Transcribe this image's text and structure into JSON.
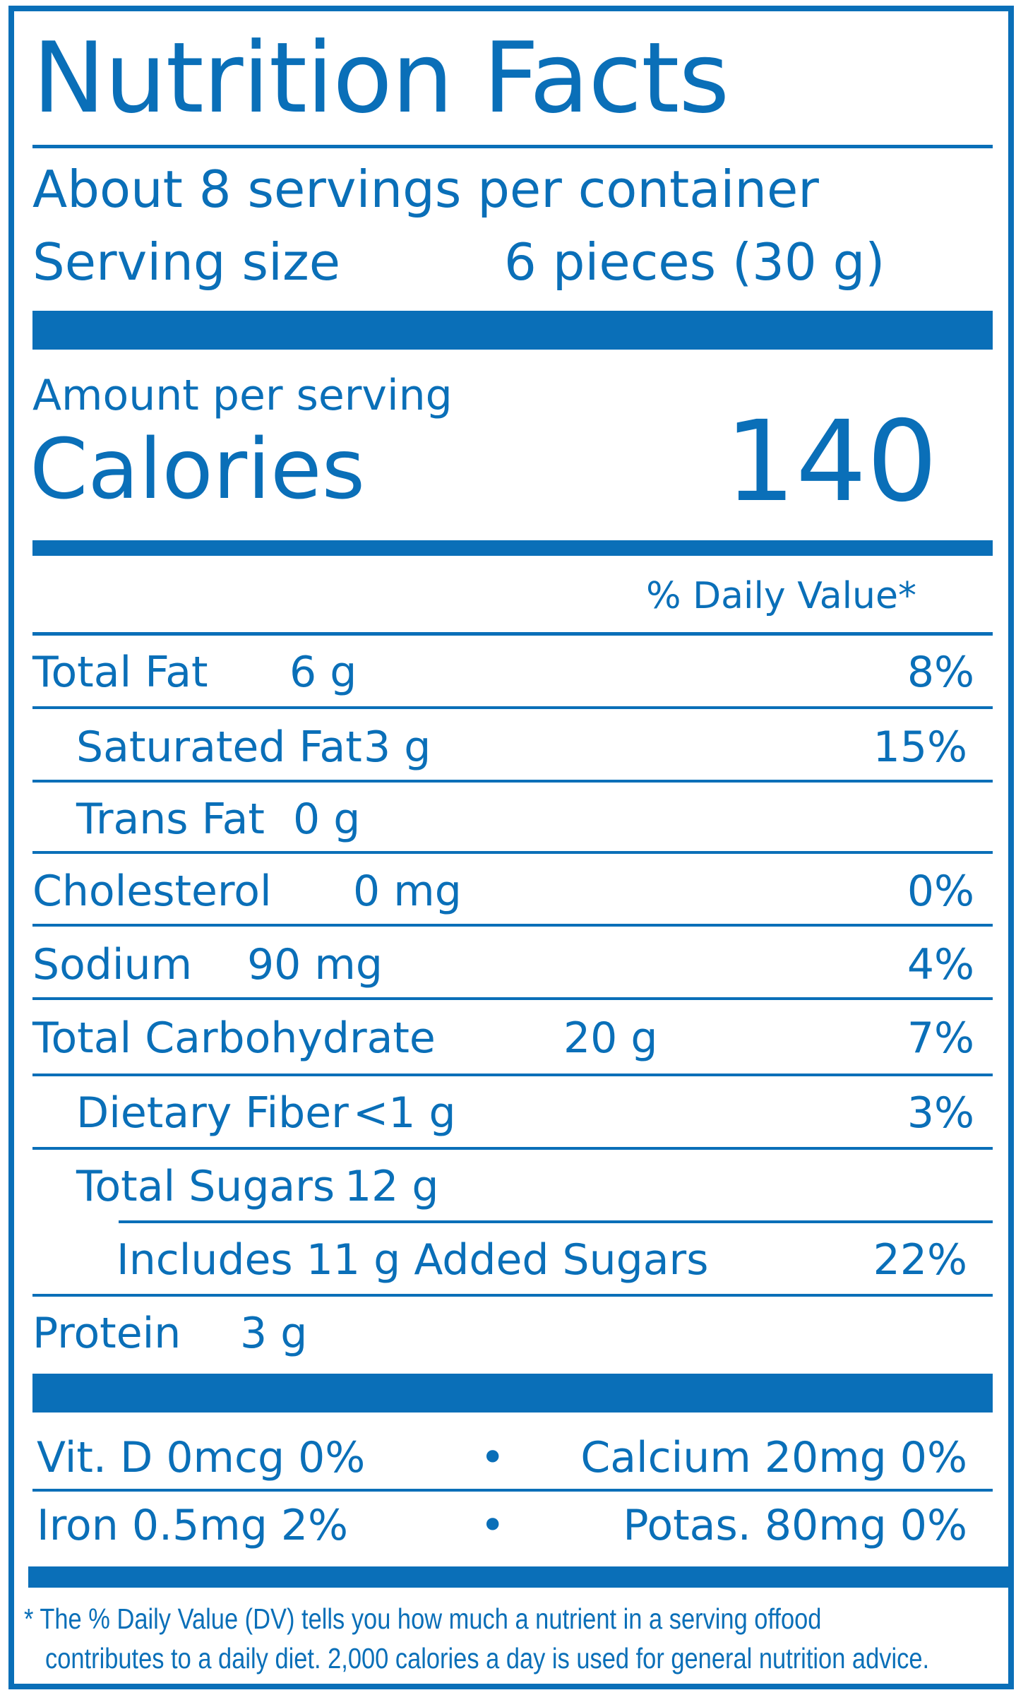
{
  "title": "Nutrition Facts",
  "servings_per_container": "About 8 servings per container",
  "serving_size": {
    "label": "Serving size",
    "value": "6 pieces (30 g)"
  },
  "amount_per_serving": "Amount per serving",
  "calories": {
    "label": "Calories",
    "value": "140"
  },
  "daily_value_header": "% Daily Value*",
  "nutrients": [
    {
      "name": "Total Fat",
      "amount": "6 g",
      "dv": "8%"
    },
    {
      "name": "Saturated Fat",
      "amount": "3 g",
      "dv": "15%"
    },
    {
      "name": "Trans  Fat",
      "amount": "0 g",
      "dv": ""
    },
    {
      "name": "Cholesterol",
      "amount": "0 mg",
      "dv": "0%"
    },
    {
      "name": "Sodium",
      "amount": "90 mg",
      "dv": "4%"
    },
    {
      "name": "Total Carbohydrate",
      "amount": "20 g",
      "dv": "7%"
    },
    {
      "name": "Dietary Fiber",
      "amount": "<1 g",
      "dv": "3%"
    },
    {
      "name": "Total Sugars",
      "amount": "12 g",
      "dv": ""
    },
    {
      "name": "Includes 11 g Added Sugars",
      "amount": "",
      "dv": "22%"
    },
    {
      "name": "Protein",
      "amount": "3 g",
      "dv": ""
    }
  ],
  "vitamins": [
    {
      "left": "Vit. D 0mcg 0%",
      "right": "Calcium 20mg 0%"
    },
    {
      "left": "Iron 0.5mg 2%",
      "right": "Potas. 80mg 0%"
    }
  ],
  "separator": "•",
  "footnote": {
    "line1": "* The % Daily Value (DV) tells you how much a nutrient in a serving offood",
    "line2": "contributes to a daily diet. 2,000 calories a day is used for general nutrition advice."
  },
  "colors": {
    "label_blue": "#0a6fb8",
    "background": "#ffffff"
  }
}
